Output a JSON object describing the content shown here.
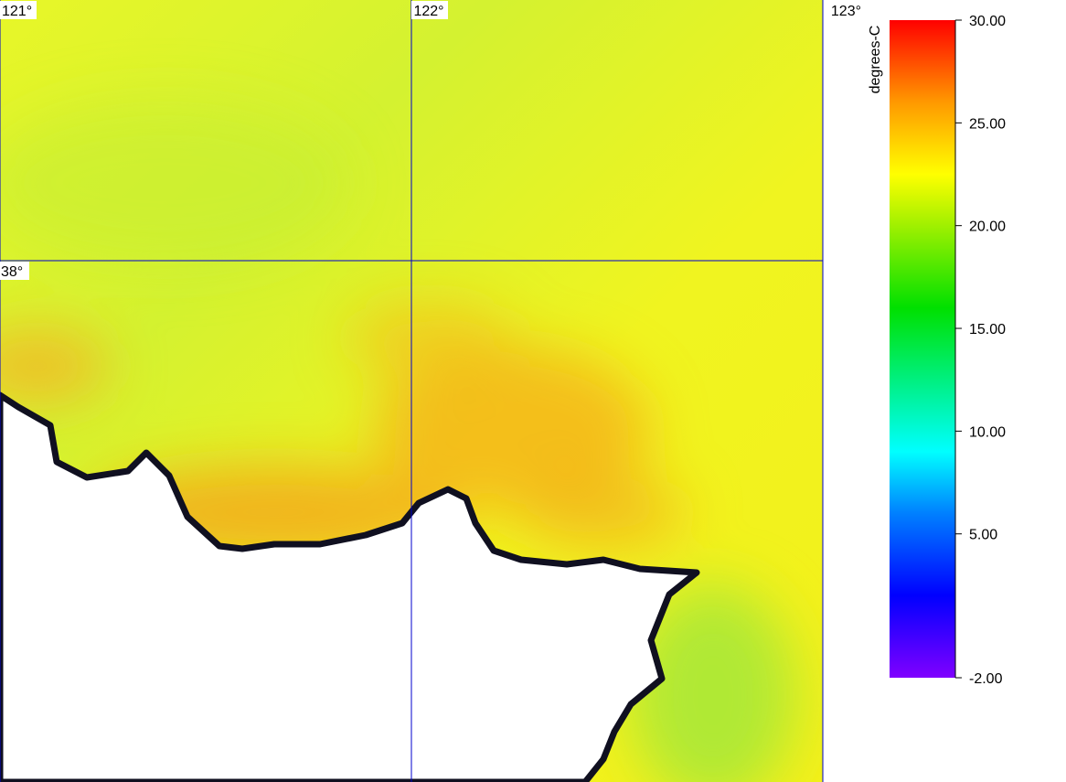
{
  "map": {
    "lon_ticks": [
      {
        "value": 121,
        "label": "121°"
      },
      {
        "value": 122,
        "label": "122°"
      },
      {
        "value": 123,
        "label": "123°"
      }
    ],
    "lat_ticks": [
      {
        "value": 38,
        "label": "38°"
      }
    ],
    "xlim": [
      121,
      123
    ],
    "ylim": [
      37.0,
      38.5
    ],
    "grid_color": "#0000cc"
  },
  "colorbar": {
    "title": "degrees-C",
    "lim": [
      -2,
      30
    ],
    "ticks": [
      {
        "value": 30,
        "label": "30.00"
      },
      {
        "value": 25,
        "label": "25.00"
      },
      {
        "value": 20,
        "label": "20.00"
      },
      {
        "value": 15,
        "label": "15.00"
      },
      {
        "value": 10,
        "label": "10.00"
      },
      {
        "value": 5,
        "label": "5.00"
      },
      {
        "value": -2,
        "label": "-2.00"
      }
    ],
    "colormap": [
      {
        "value": -2,
        "color": "#8000ff"
      },
      {
        "value": 2,
        "color": "#0000ff"
      },
      {
        "value": 6,
        "color": "#0080ff"
      },
      {
        "value": 9,
        "color": "#00ffff"
      },
      {
        "value": 16,
        "color": "#00e000"
      },
      {
        "value": 20,
        "color": "#a0f000"
      },
      {
        "value": 22.5,
        "color": "#ffff00"
      },
      {
        "value": 26,
        "color": "#ff9900"
      },
      {
        "value": 30,
        "color": "#ff0000"
      }
    ]
  }
}
